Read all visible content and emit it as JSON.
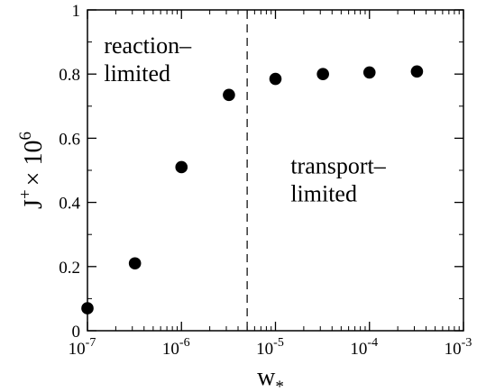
{
  "chart_data": {
    "type": "scatter",
    "title": "",
    "xlabel": "w",
    "xlabel_subscript": "*",
    "ylabel": "J",
    "ylabel_superscript": "+",
    "ylabel_factor": "× 10",
    "ylabel_factor_exponent": "6",
    "x_scale": "log",
    "xlim": [
      1e-07,
      0.001
    ],
    "ylim": [
      0,
      1
    ],
    "grid": false,
    "legend": "none",
    "x_ticks": [
      {
        "value": 1e-07,
        "base": "10",
        "exp": "-7"
      },
      {
        "value": 1e-06,
        "base": "10",
        "exp": "-6"
      },
      {
        "value": 1e-05,
        "base": "10",
        "exp": "-5"
      },
      {
        "value": 0.0001,
        "base": "10",
        "exp": "-4"
      },
      {
        "value": 0.001,
        "base": "10",
        "exp": "-3"
      }
    ],
    "y_ticks": [
      {
        "value": 0,
        "label": "0"
      },
      {
        "value": 0.2,
        "label": "0.2"
      },
      {
        "value": 0.4,
        "label": "0.4"
      },
      {
        "value": 0.6,
        "label": "0.6"
      },
      {
        "value": 0.8,
        "label": "0.8"
      },
      {
        "value": 1,
        "label": "1"
      }
    ],
    "x": [
      1e-07,
      3.2e-07,
      1e-06,
      3.2e-06,
      1e-05,
      3.2e-05,
      0.0001,
      0.00032
    ],
    "y": [
      0.07,
      0.21,
      0.51,
      0.735,
      0.785,
      0.8,
      0.805,
      0.808
    ],
    "divider_x": 5e-06,
    "annotations": [
      {
        "lines": [
          "reaction–",
          "limited"
        ],
        "x": 1.5e-07,
        "y": 0.865
      },
      {
        "lines": [
          "transport–",
          "limited"
        ],
        "x": 1.45e-05,
        "y": 0.49
      }
    ],
    "colors": {
      "marker": "#000000",
      "axis": "#000000",
      "divider": "#000000"
    }
  }
}
